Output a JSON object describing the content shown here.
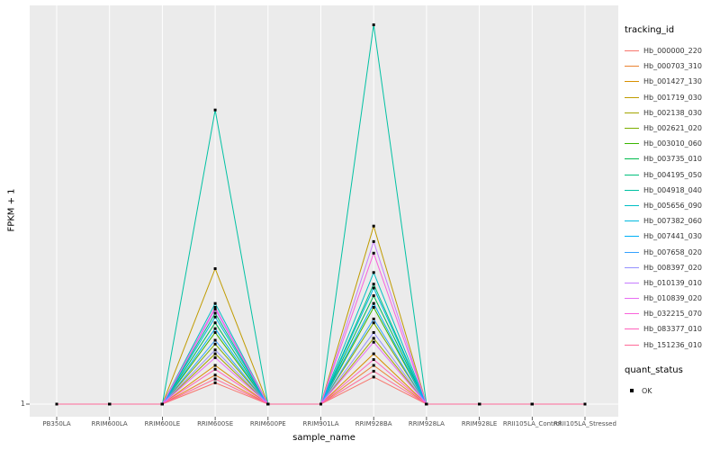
{
  "axes": {
    "y_tick": "1"
  },
  "legend": {
    "tracking_title": "tracking_id",
    "quant_title": "quant_status",
    "quant_items": [
      {
        "label": "OK",
        "marker": "filled-square",
        "color": "#000000"
      }
    ]
  },
  "style": {
    "panel_bg": "#EBEBEB",
    "gridline_color": "#FFFFFF",
    "point_color": "#000000",
    "tick_color": "#333333"
  },
  "chart_data": {
    "type": "line",
    "title": "",
    "xlabel": "sample_name",
    "ylabel": "FPKM + 1",
    "y_ticks": [
      "1"
    ],
    "legend_position": "right",
    "grid": "major vertical white gridlines on gray panel",
    "point_shape": "filled-square",
    "note": "Only the y tick '1' is labeled; series values are relative peak heights (fraction of panel height above the y=1 baseline) estimated from pixels. All samples sit at baseline except RRIM600SE and RRIM928BA.",
    "x_categories": [
      "PB350LA",
      "RRIM600LA",
      "RRIM600LE",
      "RRIM600SE",
      "RRIM600PE",
      "RRIM901LA",
      "RRIM928BA",
      "RRIM928LA",
      "RRIM928LE",
      "RRII105LA_Control",
      "RRII105LA_Stressed"
    ],
    "series": [
      {
        "name": "Hb_000000_220",
        "color": "#F8766D",
        "values": [
          0,
          0,
          0,
          0.055,
          0,
          0,
          0.07,
          0,
          0,
          0,
          0
        ]
      },
      {
        "name": "Hb_000703_310",
        "color": "#EA8331",
        "values": [
          0,
          0,
          0,
          0.075,
          0,
          0,
          0.1,
          0,
          0,
          0,
          0
        ]
      },
      {
        "name": "Hb_001427_130",
        "color": "#D89000",
        "values": [
          0,
          0,
          0,
          0.1,
          0,
          0,
          0.13,
          0,
          0,
          0,
          0
        ]
      },
      {
        "name": "Hb_001719_030",
        "color": "#C09B00",
        "values": [
          0,
          0,
          0,
          0.35,
          0,
          0,
          0.46,
          0,
          0,
          0,
          0
        ]
      },
      {
        "name": "Hb_002138_030",
        "color": "#A3A500",
        "values": [
          0,
          0,
          0,
          0.13,
          0,
          0,
          0.17,
          0,
          0,
          0,
          0
        ]
      },
      {
        "name": "Hb_002621_020",
        "color": "#7CAE00",
        "values": [
          0,
          0,
          0,
          0.155,
          0,
          0,
          0.21,
          0,
          0,
          0,
          0
        ]
      },
      {
        "name": "Hb_003010_060",
        "color": "#39B600",
        "values": [
          0,
          0,
          0,
          0.185,
          0,
          0,
          0.25,
          0,
          0,
          0,
          0
        ]
      },
      {
        "name": "Hb_003735_010",
        "color": "#00BB4E",
        "values": [
          0,
          0,
          0,
          0.21,
          0,
          0,
          0.28,
          0,
          0,
          0,
          0
        ]
      },
      {
        "name": "Hb_004195_050",
        "color": "#00BF7D",
        "values": [
          0,
          0,
          0,
          0.235,
          0,
          0,
          0.31,
          0,
          0,
          0,
          0
        ]
      },
      {
        "name": "Hb_004918_040",
        "color": "#00C1A3",
        "values": [
          0,
          0,
          0,
          0.76,
          0,
          0,
          0.98,
          0,
          0,
          0,
          0
        ]
      },
      {
        "name": "Hb_005656_090",
        "color": "#00BFC4",
        "values": [
          0,
          0,
          0,
          0.26,
          0,
          0,
          0.34,
          0,
          0,
          0,
          0
        ]
      },
      {
        "name": "Hb_007382_060",
        "color": "#00BAE0",
        "values": [
          0,
          0,
          0,
          0.225,
          0,
          0,
          0.3,
          0,
          0,
          0,
          0
        ]
      },
      {
        "name": "Hb_007441_030",
        "color": "#00B0F6",
        "values": [
          0,
          0,
          0,
          0.195,
          0,
          0,
          0.26,
          0,
          0,
          0,
          0
        ]
      },
      {
        "name": "Hb_007658_020",
        "color": "#35A2FF",
        "values": [
          0,
          0,
          0,
          0.165,
          0,
          0,
          0.22,
          0,
          0,
          0,
          0
        ]
      },
      {
        "name": "Hb_008397_020",
        "color": "#9590FF",
        "values": [
          0,
          0,
          0,
          0.14,
          0,
          0,
          0.185,
          0,
          0,
          0,
          0
        ]
      },
      {
        "name": "Hb_010139_010",
        "color": "#C77CFF",
        "values": [
          0,
          0,
          0,
          0.245,
          0,
          0,
          0.42,
          0,
          0,
          0,
          0
        ]
      },
      {
        "name": "Hb_010839_020",
        "color": "#E76BF3",
        "values": [
          0,
          0,
          0,
          0.12,
          0,
          0,
          0.16,
          0,
          0,
          0,
          0
        ]
      },
      {
        "name": "Hb_032215_070",
        "color": "#FA62DB",
        "values": [
          0,
          0,
          0,
          0.25,
          0,
          0,
          0.39,
          0,
          0,
          0,
          0
        ]
      },
      {
        "name": "Hb_083377_010",
        "color": "#FF62BC",
        "values": [
          0,
          0,
          0,
          0.09,
          0,
          0,
          0.115,
          0,
          0,
          0,
          0
        ]
      },
      {
        "name": "Hb_151236_010",
        "color": "#FF6A98",
        "values": [
          0,
          0,
          0,
          0.065,
          0,
          0,
          0.085,
          0,
          0,
          0,
          0
        ]
      }
    ]
  }
}
